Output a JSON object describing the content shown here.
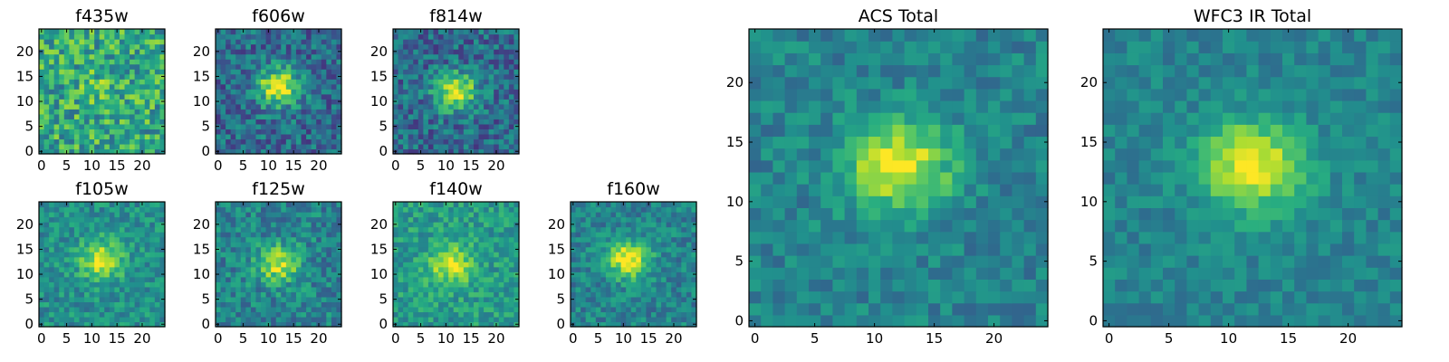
{
  "chart_data": [
    {
      "type": "heatmap",
      "title": "f435w",
      "xticks": [
        0,
        5,
        10,
        15,
        20
      ],
      "yticks": [
        0,
        5,
        10,
        15,
        20
      ],
      "grid_size": 25,
      "xlim": [
        0,
        24
      ],
      "ylim": [
        0,
        24
      ],
      "colormap": "viridis",
      "source_center": [
        12,
        13
      ],
      "source_strength": 0.1,
      "noise": 0.5,
      "base": 0.6,
      "seed": 11
    },
    {
      "type": "heatmap",
      "title": "f606w",
      "xticks": [
        0,
        5,
        10,
        15,
        20
      ],
      "yticks": [
        0,
        5,
        10,
        15,
        20
      ],
      "grid_size": 25,
      "xlim": [
        0,
        24
      ],
      "ylim": [
        0,
        24
      ],
      "colormap": "viridis",
      "source_center": [
        12,
        13
      ],
      "source_strength": 0.65,
      "noise": 0.4,
      "base": 0.35,
      "seed": 23
    },
    {
      "type": "heatmap",
      "title": "f814w",
      "xticks": [
        0,
        5,
        10,
        15,
        20
      ],
      "yticks": [
        0,
        5,
        10,
        15,
        20
      ],
      "grid_size": 25,
      "xlim": [
        0,
        24
      ],
      "ylim": [
        0,
        24
      ],
      "colormap": "viridis",
      "source_center": [
        12,
        12
      ],
      "source_strength": 0.6,
      "noise": 0.4,
      "base": 0.35,
      "seed": 37
    },
    {
      "type": "heatmap",
      "title": "f105w",
      "xticks": [
        0,
        5,
        10,
        15,
        20
      ],
      "yticks": [
        0,
        5,
        10,
        15,
        20
      ],
      "grid_size": 25,
      "xlim": [
        0,
        24
      ],
      "ylim": [
        0,
        24
      ],
      "colormap": "viridis",
      "source_center": [
        12,
        13
      ],
      "source_strength": 0.45,
      "noise": 0.3,
      "base": 0.5,
      "seed": 41
    },
    {
      "type": "heatmap",
      "title": "f125w",
      "xticks": [
        0,
        5,
        10,
        15,
        20
      ],
      "yticks": [
        0,
        5,
        10,
        15,
        20
      ],
      "grid_size": 25,
      "xlim": [
        0,
        24
      ],
      "ylim": [
        0,
        24
      ],
      "colormap": "viridis",
      "source_center": [
        12,
        12
      ],
      "source_strength": 0.45,
      "noise": 0.35,
      "base": 0.45,
      "seed": 53
    },
    {
      "type": "heatmap",
      "title": "f140w",
      "xticks": [
        0,
        5,
        10,
        15,
        20
      ],
      "yticks": [
        0,
        5,
        10,
        15,
        20
      ],
      "grid_size": 25,
      "xlim": [
        0,
        24
      ],
      "ylim": [
        0,
        24
      ],
      "colormap": "viridis",
      "source_center": [
        11,
        12
      ],
      "source_strength": 0.4,
      "noise": 0.3,
      "base": 0.55,
      "seed": 67
    },
    {
      "type": "heatmap",
      "title": "f160w",
      "xticks": [
        0,
        5,
        10,
        15,
        20
      ],
      "yticks": [
        0,
        5,
        10,
        15,
        20
      ],
      "grid_size": 25,
      "xlim": [
        0,
        24
      ],
      "ylim": [
        0,
        24
      ],
      "colormap": "viridis",
      "source_center": [
        11,
        13
      ],
      "source_strength": 0.55,
      "noise": 0.3,
      "base": 0.45,
      "seed": 71
    },
    {
      "type": "heatmap",
      "title": "ACS Total",
      "xticks": [
        0,
        5,
        10,
        15,
        20
      ],
      "yticks": [
        0,
        5,
        10,
        15,
        20
      ],
      "grid_size": 25,
      "xlim": [
        0,
        24
      ],
      "ylim": [
        0,
        24
      ],
      "colormap": "viridis",
      "source_center": [
        12,
        13
      ],
      "source_strength": 0.55,
      "noise": 0.25,
      "base": 0.45,
      "seed": 83
    },
    {
      "type": "heatmap",
      "title": "WFC3 IR Total",
      "xticks": [
        0,
        5,
        10,
        15,
        20
      ],
      "yticks": [
        0,
        5,
        10,
        15,
        20
      ],
      "grid_size": 25,
      "xlim": [
        0,
        24
      ],
      "ylim": [
        0,
        24
      ],
      "colormap": "viridis",
      "source_center": [
        12,
        13
      ],
      "source_strength": 0.55,
      "noise": 0.2,
      "base": 0.45,
      "seed": 97
    }
  ]
}
